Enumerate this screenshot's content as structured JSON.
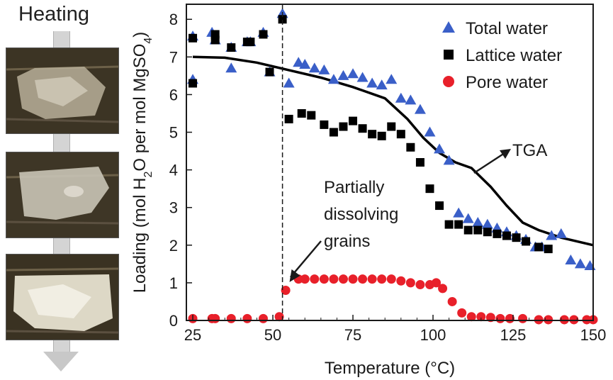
{
  "left_panel": {
    "heating_label": "Heating",
    "photos": [
      {
        "description_icon": "crystal-photo-icon"
      },
      {
        "description_icon": "crystal-photo-icon"
      },
      {
        "description_icon": "crystal-photo-icon"
      }
    ],
    "arrow_color": "#d4d4d4"
  },
  "chart_data": {
    "type": "scatter",
    "xlabel": "Temperature (°C)",
    "ylabel": "Loading (mol H₂O per mol MgSO₄)",
    "xlim": [
      23,
      150
    ],
    "ylim": [
      0,
      8.4
    ],
    "xticks": [
      25,
      50,
      75,
      100,
      125,
      150
    ],
    "yticks": [
      0,
      1,
      2,
      3,
      4,
      5,
      6,
      7,
      8
    ],
    "grid": false,
    "legend_position": "top-right",
    "vline_x": 53,
    "series": [
      {
        "name": "Total water",
        "marker": "triangle",
        "color": "#3a5fc8",
        "x": [
          25,
          25,
          31,
          32,
          37,
          37,
          42,
          43,
          47,
          49,
          53,
          55,
          58,
          60,
          63,
          66,
          69,
          72,
          75,
          78,
          81,
          84,
          87,
          90,
          93,
          96,
          99,
          102,
          105,
          108,
          111,
          114,
          117,
          120,
          123,
          126,
          129,
          132,
          134,
          137,
          140,
          143,
          146,
          149
        ],
        "y": [
          7.55,
          6.4,
          7.65,
          7.45,
          7.25,
          6.7,
          7.4,
          7.4,
          7.65,
          6.6,
          8.15,
          6.3,
          6.85,
          6.8,
          6.7,
          6.65,
          6.4,
          6.5,
          6.55,
          6.45,
          6.3,
          6.25,
          6.4,
          5.9,
          5.85,
          5.6,
          5.0,
          4.55,
          4.25,
          2.85,
          2.7,
          2.6,
          2.55,
          2.45,
          2.35,
          2.25,
          2.15,
          1.95,
          1.95,
          2.25,
          2.3,
          1.6,
          1.5,
          1.45
        ]
      },
      {
        "name": "Lattice water",
        "marker": "square",
        "color": "#000000",
        "x": [
          25,
          25,
          32,
          32,
          37,
          42,
          43,
          47,
          49,
          53,
          55,
          59,
          62,
          66,
          69,
          72,
          75,
          78,
          81,
          84,
          87,
          90,
          93,
          96,
          99,
          102,
          105,
          108,
          111,
          114,
          117,
          120,
          123,
          126,
          129,
          133,
          136
        ],
        "y": [
          7.5,
          6.3,
          7.6,
          7.45,
          7.25,
          7.4,
          7.4,
          7.6,
          6.6,
          8.0,
          5.35,
          5.5,
          5.45,
          5.2,
          5.0,
          5.15,
          5.3,
          5.1,
          4.95,
          4.9,
          5.15,
          4.95,
          4.6,
          4.2,
          3.5,
          3.05,
          2.55,
          2.55,
          2.4,
          2.4,
          2.35,
          2.3,
          2.25,
          2.2,
          2.1,
          1.95,
          1.9
        ]
      },
      {
        "name": "Pore water",
        "marker": "circle",
        "color": "#e8202a",
        "x": [
          25,
          31,
          32,
          37,
          42,
          47,
          52,
          54,
          58,
          60,
          63,
          66,
          69,
          72,
          75,
          78,
          81,
          84,
          87,
          90,
          93,
          96,
          99,
          101,
          103,
          106,
          109,
          112,
          115,
          118,
          121,
          124,
          128,
          133,
          136,
          141,
          144,
          148,
          150
        ],
        "y": [
          0.05,
          0.05,
          0.05,
          0.05,
          0.05,
          0.05,
          0.1,
          0.8,
          1.1,
          1.1,
          1.1,
          1.1,
          1.1,
          1.1,
          1.1,
          1.1,
          1.1,
          1.1,
          1.1,
          1.05,
          1.0,
          0.95,
          0.95,
          1.0,
          0.85,
          0.5,
          0.2,
          0.1,
          0.1,
          0.08,
          0.05,
          0.05,
          0.05,
          0.02,
          0.02,
          0.02,
          0.02,
          0.02,
          0.02
        ]
      },
      {
        "name": "TGA",
        "marker": "line",
        "color": "#000000",
        "x": [
          25,
          35,
          45,
          55,
          65,
          75,
          85,
          92,
          97,
          102,
          107,
          112,
          118,
          123,
          128,
          133,
          140,
          150
        ],
        "y": [
          7.0,
          6.98,
          6.85,
          6.65,
          6.45,
          6.2,
          5.9,
          5.35,
          4.85,
          4.45,
          4.2,
          4.05,
          3.55,
          3.05,
          2.6,
          2.4,
          2.2,
          2.0
        ]
      }
    ],
    "annotations": [
      {
        "text_lines": [
          "Partially",
          "dissolving",
          "grains"
        ]
      },
      {
        "text": "TGA"
      }
    ]
  }
}
